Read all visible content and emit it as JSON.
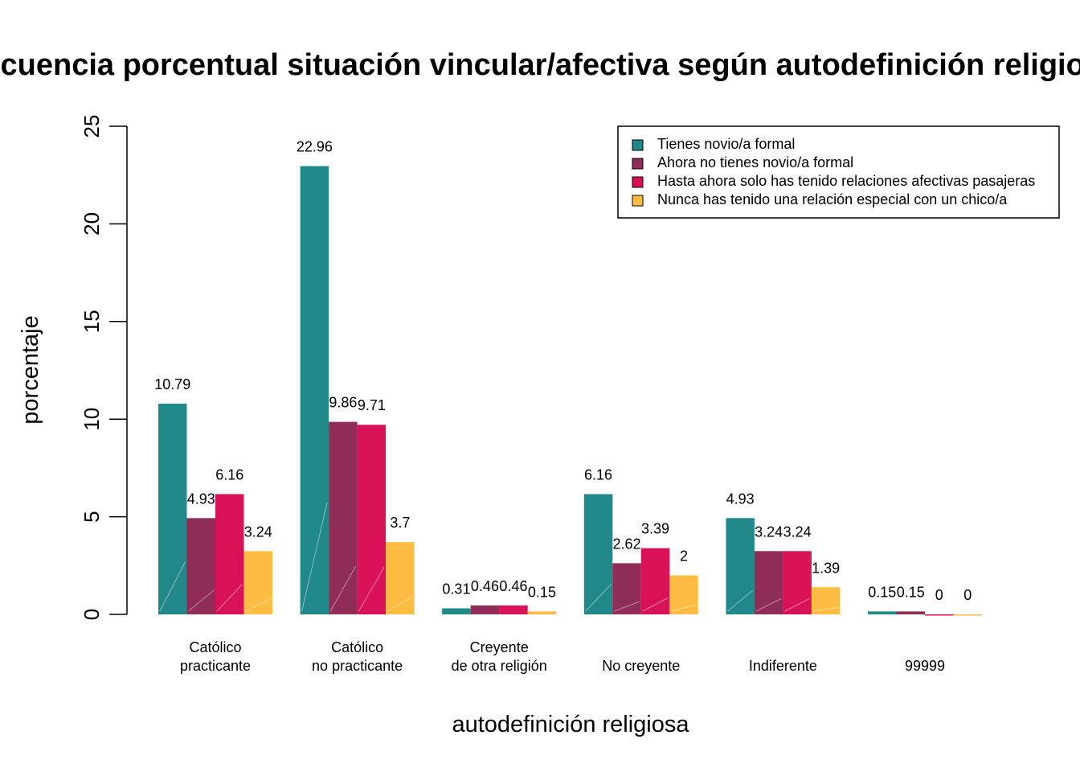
{
  "chart_data": {
    "type": "bar",
    "title": "frecuencia porcentual situación vincular/afectiva según autodefinición religiosa",
    "xlabel": "autodefinición religiosa",
    "ylabel": "porcentaje",
    "ylim": [
      0,
      25
    ],
    "yticks": [
      "0",
      "5",
      "10",
      "15",
      "20",
      "25"
    ],
    "categories": [
      [
        "Católico",
        "practicante"
      ],
      [
        "Católico",
        "no practicante"
      ],
      [
        "Creyente",
        "de otra religión"
      ],
      [
        "No creyente"
      ],
      [
        "Indiferente"
      ],
      [
        "99999"
      ]
    ],
    "series": [
      {
        "name": "Tienes novio/a formal",
        "color": "#21888A",
        "values": [
          10.79,
          22.96,
          0.31,
          6.16,
          4.93,
          0.15
        ],
        "labels": [
          "10.79",
          "22.96",
          "0.31",
          "6.16",
          "4.93",
          "0.15"
        ]
      },
      {
        "name": "Ahora no tienes novio/a formal",
        "color": "#8F2D56",
        "values": [
          4.93,
          9.86,
          0.46,
          2.62,
          3.24,
          0.15
        ],
        "labels": [
          "4.93",
          "9.86",
          "0.46",
          "2.62",
          "3.24",
          "0.15"
        ]
      },
      {
        "name": "Hasta ahora solo has tenido relaciones afectivas pasajeras",
        "color": "#D81159",
        "values": [
          6.16,
          9.71,
          0.46,
          3.39,
          3.24,
          0
        ],
        "labels": [
          "6.16",
          "9.71",
          "0.46",
          "3.39",
          "3.24",
          "0"
        ]
      },
      {
        "name": "Nunca has tenido una relación especial con un chico/a",
        "color": "#FFBC42",
        "values": [
          3.24,
          3.7,
          0.15,
          2,
          1.39,
          0
        ],
        "labels": [
          "3.24",
          "3.7",
          "0.15",
          "2",
          "1.39",
          "0"
        ]
      }
    ],
    "legend_position": "top-right",
    "grid": false
  }
}
